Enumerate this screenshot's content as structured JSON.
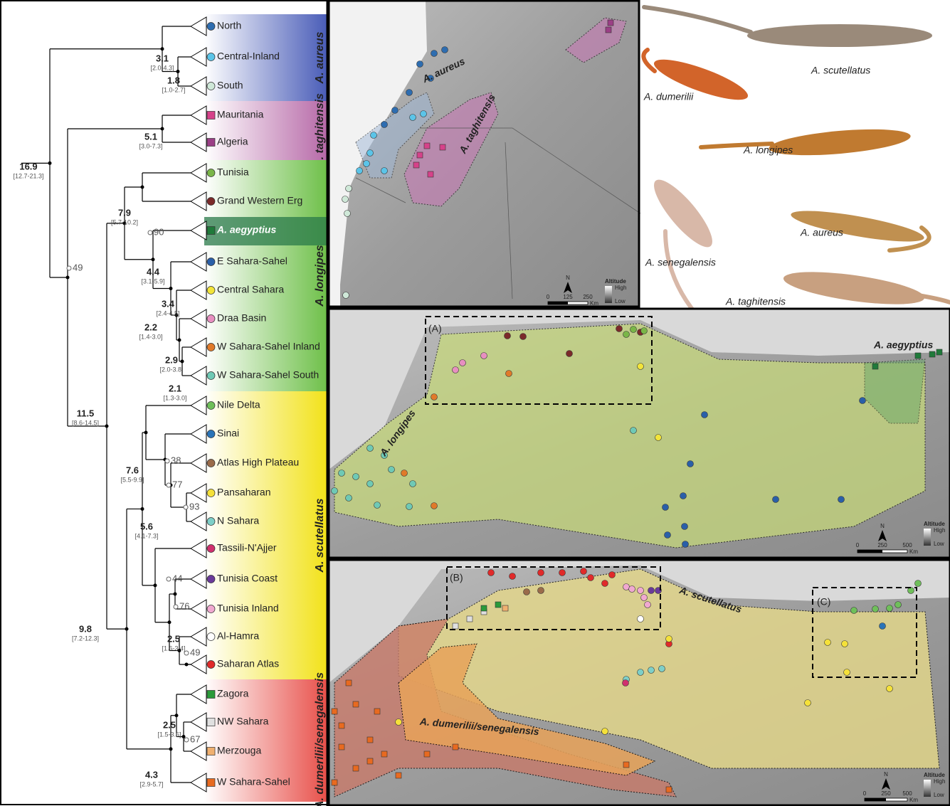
{
  "tree": {
    "tips": [
      {
        "label": "North",
        "color": "#2e6db0",
        "shape": "circle"
      },
      {
        "label": "Central-Inland",
        "color": "#5bc4e8",
        "shape": "circle"
      },
      {
        "label": "South",
        "color": "#cfe8d8",
        "shape": "circle"
      },
      {
        "label": "Mauritania",
        "color": "#d6428a",
        "shape": "square"
      },
      {
        "label": "Algeria",
        "color": "#9b3f86",
        "shape": "square"
      },
      {
        "label": "Tunisia",
        "color": "#7ab648",
        "shape": "circle"
      },
      {
        "label": "Grand Western Erg",
        "color": "#7b2a2a",
        "shape": "circle"
      },
      {
        "label": "A. aegyptius",
        "color": "#1f7a3a",
        "shape": "square"
      },
      {
        "label": "E Sahara-Sahel",
        "color": "#2a5fa8",
        "shape": "circle"
      },
      {
        "label": "Central Sahara",
        "color": "#f2e43a",
        "shape": "circle"
      },
      {
        "label": "Draa Basin",
        "color": "#e78fc0",
        "shape": "circle"
      },
      {
        "label": "W Sahara-Sahel Inland",
        "color": "#e07a2a",
        "shape": "circle"
      },
      {
        "label": "W Sahara-Sahel South",
        "color": "#6fc9b5",
        "shape": "circle"
      },
      {
        "label": "Nile Delta",
        "color": "#6fbf5a",
        "shape": "circle"
      },
      {
        "label": "Sinai",
        "color": "#2a74b8",
        "shape": "circle"
      },
      {
        "label": "Atlas High Plateau",
        "color": "#9a6b4a",
        "shape": "circle"
      },
      {
        "label": "Pansaharan",
        "color": "#f5e13a",
        "shape": "circle"
      },
      {
        "label": "N Sahara",
        "color": "#7ecfc8",
        "shape": "circle"
      },
      {
        "label": "Tassili-N'Ajjer",
        "color": "#d0306e",
        "shape": "circle"
      },
      {
        "label": "Tunisia Coast",
        "color": "#6a3a9a",
        "shape": "circle"
      },
      {
        "label": "Tunisia Inland",
        "color": "#f0a8d0",
        "shape": "circle"
      },
      {
        "label": "Al-Hamra",
        "color": "#ffffff",
        "shape": "circle"
      },
      {
        "label": "Saharan Atlas",
        "color": "#e02a2a",
        "shape": "circle"
      },
      {
        "label": "Zagora",
        "color": "#2a9a3a",
        "shape": "square"
      },
      {
        "label": "NW Sahara",
        "color": "#e0e0e0",
        "shape": "square"
      },
      {
        "label": "Merzouga",
        "color": "#f0b070",
        "shape": "square"
      },
      {
        "label": "W Sahara-Sahel",
        "color": "#e86a20",
        "shape": "square"
      }
    ],
    "clades": [
      {
        "label": "A. aureus",
        "color": "#4a5db8"
      },
      {
        "label": "A. taghitensis",
        "color": "#b76aa8"
      },
      {
        "label": "A. longipes",
        "color": "#6fc04a"
      },
      {
        "label": "A. scutellatus",
        "color": "#f2e21a"
      },
      {
        "label": "A. dumerilii/senegalensis",
        "color": "#e8504a"
      }
    ],
    "nodes": [
      {
        "age": "16.9",
        "ci": "[12.7-21.3]"
      },
      {
        "age": "3.1",
        "ci": "[2.0-4.3]"
      },
      {
        "age": "1.8",
        "ci": "[1.0-2.7]"
      },
      {
        "age": "5.1",
        "ci": "[3.0-7.3]"
      },
      {
        "age": "7.9",
        "ci": "[5.7-10.2]"
      },
      {
        "age": "4.4",
        "ci": "[3.1-5.9]"
      },
      {
        "age": "3.4",
        "ci": "[2.4-4.5]"
      },
      {
        "age": "2.2",
        "ci": "[1.4-3.0]"
      },
      {
        "age": "2.9",
        "ci": "[2.0-3.8]"
      },
      {
        "age": "2.1",
        "ci": "[1.3-3.0]"
      },
      {
        "age": "11.5",
        "ci": "[8.6-14.5]"
      },
      {
        "age": "7.6",
        "ci": "[5.5-9.9]"
      },
      {
        "age": "5.6",
        "ci": "[4.1-7.3]"
      },
      {
        "age": "9.8",
        "ci": "[7.2-12.3]"
      },
      {
        "age": "2.5",
        "ci": "[1.6-3.4]"
      },
      {
        "age": "2.5",
        "ci": "[1.5-3.6]"
      },
      {
        "age": "4.3",
        "ci": "[2.9-5.7]"
      }
    ],
    "support": [
      "49",
      "90",
      "38",
      "77",
      "93",
      "44",
      "76",
      "49",
      "67"
    ]
  },
  "maps": {
    "top": {
      "labels": [
        "A. aureus",
        "A. taghitensis"
      ],
      "north": "N",
      "scale": [
        "0",
        "125",
        "250",
        "Km"
      ],
      "legend": {
        "title": "Altitude",
        "high": "High",
        "low": "Low"
      }
    },
    "middle": {
      "boxes": [
        "(A)"
      ],
      "labels": [
        "A. aegyptius",
        "A. longipes"
      ],
      "north": "N",
      "scale": [
        "0",
        "250",
        "500",
        "Km"
      ],
      "legend": {
        "title": "Altitude",
        "high": "High",
        "low": "Low"
      }
    },
    "bottom": {
      "boxes": [
        "(B)",
        "(C)"
      ],
      "labels": [
        "A. scutellatus",
        "A. dumerilii/senegalensis"
      ],
      "north": "N",
      "scale": [
        "0",
        "250",
        "500",
        "Km"
      ],
      "legend": {
        "title": "Altitude",
        "high": "High",
        "low": "Low"
      }
    }
  },
  "photos": [
    "A. scutellatus",
    "A. dumerilii",
    "A. longipes",
    "A. senegalensis",
    "A. aureus",
    "A. taghitensis"
  ]
}
